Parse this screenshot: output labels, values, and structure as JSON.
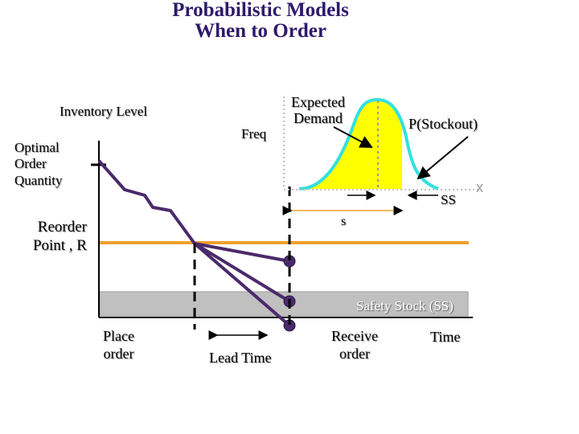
{
  "title": {
    "line1": "Probabilistic Models",
    "line2": "When to Order"
  },
  "labels": {
    "inventory_level": "Inventory Level",
    "optimal_order_quantity": [
      "Optimal",
      "Order",
      "Quantity"
    ],
    "reorder_point": [
      "Reorder",
      "Point , R"
    ],
    "freq": "Freq",
    "expected_demand": [
      "Expected",
      "Demand"
    ],
    "p_stockout": "P(Stockout)",
    "x_axis": "x",
    "ss": "SS",
    "s": "s",
    "safety_stock": "Safety Stock (SS)",
    "place_order": [
      "Place",
      "order"
    ],
    "lead_time": "Lead Time",
    "receive_order": [
      "Receive",
      "order"
    ],
    "time": "Time"
  },
  "colors": {
    "inventory_line": "#4a2a6b",
    "reorder_line": "#f0a030",
    "safety_stock_band": "#c0c0c0",
    "distribution_fill": "#ffff00",
    "distribution_outline": "#33e0e0",
    "marker": "#4a2a6b",
    "title": "#2e1a6b"
  }
}
